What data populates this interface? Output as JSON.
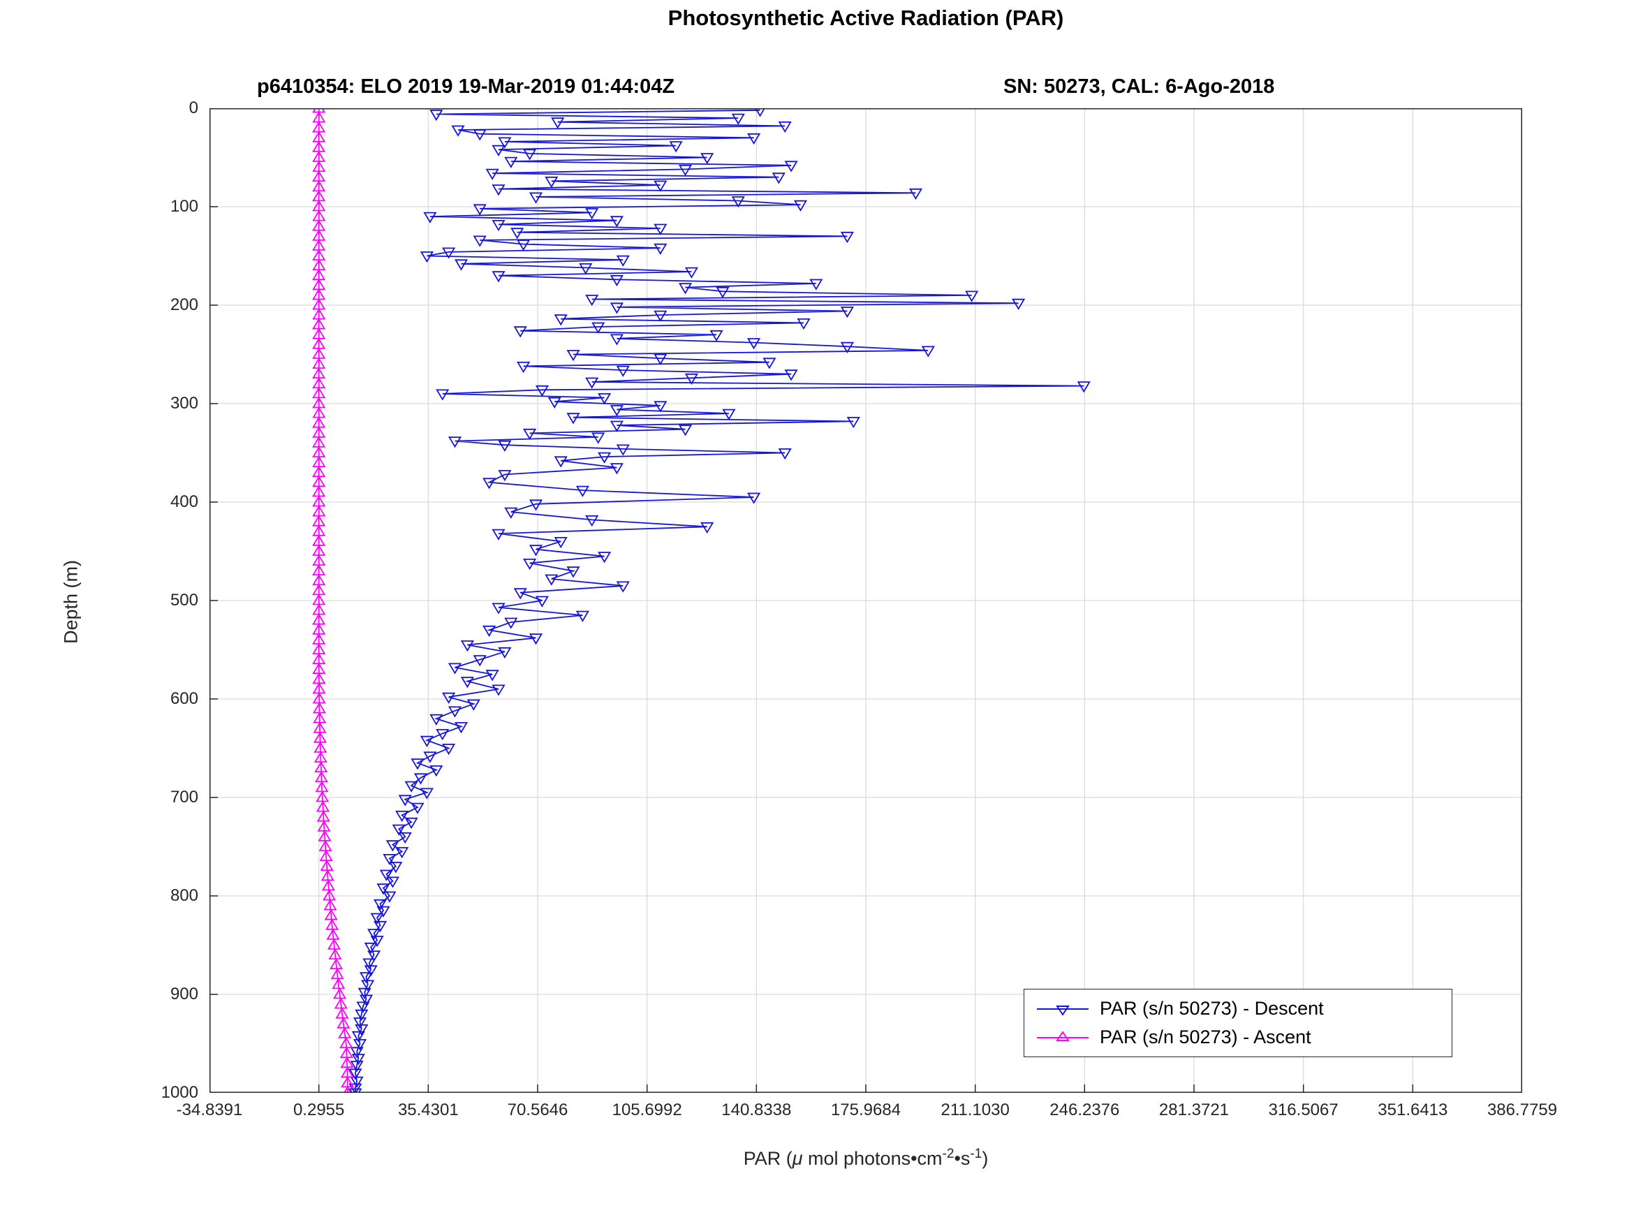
{
  "chart_data": {
    "type": "line",
    "title": "Photosynthetic Active Radiation (PAR)",
    "subtitle_left": "p6410354: ELO 2019 19-Mar-2019 01:44:04Z",
    "subtitle_right": "SN: 50273, CAL: 6-Ago-2018",
    "ylabel": "Depth (m)",
    "xlabel_plain": "PAR (μ mol photons•cm⁻²•s⁻¹)",
    "xlabel_parts": {
      "p1": "PAR (",
      "mu": "μ",
      "p2": " mol photons",
      "dot1": "•",
      "p3": "cm",
      "sup1": "-2",
      "dot2": "•",
      "p4": "s",
      "sup2": "-1",
      "p5": ")"
    },
    "grid": true,
    "y_axis_reversed": true,
    "legend_position": "bottom-right",
    "xlim": [
      -34.8391,
      386.7759
    ],
    "ylim": [
      0,
      1000
    ],
    "x_ticks": [
      -34.8391,
      0.2955,
      35.4301,
      70.5646,
      105.6992,
      140.8338,
      175.9684,
      211.103,
      246.2376,
      281.3721,
      316.5067,
      351.6413,
      386.7759
    ],
    "x_tick_labels": [
      "-34.8391",
      "0.2955",
      "35.4301",
      "70.5646",
      "105.6992",
      "140.8338",
      "175.9684",
      "211.1030",
      "246.2376",
      "281.3721",
      "316.5067",
      "351.6413",
      "386.7759"
    ],
    "y_ticks": [
      0,
      100,
      200,
      300,
      400,
      500,
      600,
      700,
      800,
      900,
      1000
    ],
    "y_tick_labels": [
      "0",
      "100",
      "200",
      "300",
      "400",
      "500",
      "600",
      "700",
      "800",
      "900",
      "1000"
    ],
    "series": [
      {
        "id": "descent",
        "name": "PAR (s/n 50273) - Descent",
        "color": "#1414dc",
        "marker": "triangle-down",
        "points": [
          [
            2,
            142
          ],
          [
            6,
            38
          ],
          [
            10,
            135
          ],
          [
            14,
            77
          ],
          [
            18,
            150
          ],
          [
            22,
            45
          ],
          [
            26,
            52
          ],
          [
            30,
            140
          ],
          [
            34,
            60
          ],
          [
            38,
            115
          ],
          [
            42,
            58
          ],
          [
            46,
            68
          ],
          [
            50,
            125
          ],
          [
            54,
            62
          ],
          [
            58,
            152
          ],
          [
            62,
            118
          ],
          [
            66,
            56
          ],
          [
            70,
            148
          ],
          [
            74,
            75
          ],
          [
            78,
            110
          ],
          [
            82,
            58
          ],
          [
            86,
            192
          ],
          [
            90,
            70
          ],
          [
            94,
            135
          ],
          [
            98,
            155
          ],
          [
            102,
            52
          ],
          [
            106,
            88
          ],
          [
            110,
            36
          ],
          [
            114,
            96
          ],
          [
            118,
            58
          ],
          [
            122,
            110
          ],
          [
            126,
            64
          ],
          [
            130,
            170
          ],
          [
            134,
            52
          ],
          [
            138,
            66
          ],
          [
            142,
            110
          ],
          [
            146,
            42
          ],
          [
            150,
            35
          ],
          [
            154,
            98
          ],
          [
            158,
            46
          ],
          [
            162,
            86
          ],
          [
            166,
            120
          ],
          [
            170,
            58
          ],
          [
            174,
            96
          ],
          [
            178,
            160
          ],
          [
            182,
            118
          ],
          [
            186,
            130
          ],
          [
            190,
            210
          ],
          [
            194,
            88
          ],
          [
            198,
            225
          ],
          [
            202,
            96
          ],
          [
            206,
            170
          ],
          [
            210,
            110
          ],
          [
            214,
            78
          ],
          [
            218,
            156
          ],
          [
            222,
            90
          ],
          [
            226,
            65
          ],
          [
            230,
            128
          ],
          [
            234,
            96
          ],
          [
            238,
            140
          ],
          [
            242,
            170
          ],
          [
            246,
            196
          ],
          [
            250,
            82
          ],
          [
            254,
            110
          ],
          [
            258,
            145
          ],
          [
            262,
            66
          ],
          [
            266,
            98
          ],
          [
            270,
            152
          ],
          [
            274,
            120
          ],
          [
            278,
            88
          ],
          [
            282,
            246
          ],
          [
            286,
            72
          ],
          [
            290,
            40
          ],
          [
            294,
            92
          ],
          [
            298,
            76
          ],
          [
            302,
            110
          ],
          [
            306,
            96
          ],
          [
            310,
            132
          ],
          [
            314,
            82
          ],
          [
            318,
            172
          ],
          [
            322,
            96
          ],
          [
            326,
            118
          ],
          [
            330,
            68
          ],
          [
            334,
            90
          ],
          [
            338,
            44
          ],
          [
            342,
            60
          ],
          [
            346,
            98
          ],
          [
            350,
            150
          ],
          [
            354,
            92
          ],
          [
            358,
            78
          ],
          [
            365,
            96
          ],
          [
            372,
            60
          ],
          [
            380,
            55
          ],
          [
            388,
            85
          ],
          [
            395,
            140
          ],
          [
            402,
            70
          ],
          [
            410,
            62
          ],
          [
            418,
            88
          ],
          [
            425,
            125
          ],
          [
            432,
            58
          ],
          [
            440,
            78
          ],
          [
            448,
            70
          ],
          [
            455,
            92
          ],
          [
            462,
            68
          ],
          [
            470,
            82
          ],
          [
            478,
            75
          ],
          [
            485,
            98
          ],
          [
            492,
            65
          ],
          [
            500,
            72
          ],
          [
            507,
            58
          ],
          [
            515,
            85
          ],
          [
            522,
            62
          ],
          [
            530,
            55
          ],
          [
            538,
            70
          ],
          [
            545,
            48
          ],
          [
            552,
            60
          ],
          [
            560,
            52
          ],
          [
            568,
            44
          ],
          [
            575,
            56
          ],
          [
            582,
            48
          ],
          [
            590,
            58
          ],
          [
            598,
            42
          ],
          [
            605,
            50
          ],
          [
            612,
            44
          ],
          [
            620,
            38
          ],
          [
            628,
            46
          ],
          [
            635,
            40
          ],
          [
            642,
            35
          ],
          [
            650,
            42
          ],
          [
            658,
            36
          ],
          [
            665,
            32
          ],
          [
            672,
            38
          ],
          [
            680,
            33
          ],
          [
            688,
            30
          ],
          [
            695,
            35
          ],
          [
            702,
            28
          ],
          [
            710,
            32
          ],
          [
            718,
            27
          ],
          [
            725,
            30
          ],
          [
            732,
            26
          ],
          [
            740,
            28
          ],
          [
            748,
            24
          ],
          [
            755,
            27
          ],
          [
            762,
            23
          ],
          [
            770,
            25
          ],
          [
            778,
            22
          ],
          [
            785,
            24
          ],
          [
            792,
            21
          ],
          [
            800,
            23
          ],
          [
            808,
            20
          ],
          [
            815,
            21
          ],
          [
            822,
            19
          ],
          [
            830,
            20
          ],
          [
            838,
            18
          ],
          [
            845,
            19
          ],
          [
            852,
            17
          ],
          [
            860,
            18
          ],
          [
            868,
            16.5
          ],
          [
            875,
            17
          ],
          [
            882,
            15.5
          ],
          [
            890,
            16
          ],
          [
            898,
            15
          ],
          [
            905,
            15.5
          ],
          [
            912,
            14.5
          ],
          [
            920,
            14
          ],
          [
            928,
            13.5
          ],
          [
            935,
            14
          ],
          [
            942,
            13
          ],
          [
            950,
            13.5
          ],
          [
            958,
            12.5
          ],
          [
            965,
            13
          ],
          [
            972,
            12.5
          ],
          [
            980,
            12
          ],
          [
            988,
            12.5
          ],
          [
            995,
            12
          ],
          [
            1000,
            12
          ]
        ]
      },
      {
        "id": "ascent",
        "name": "PAR (s/n 50273) - Ascent",
        "color": "#ff00ff",
        "marker": "triangle-up",
        "points": [
          [
            0,
            0.3
          ],
          [
            10,
            0.32
          ],
          [
            20,
            0.28
          ],
          [
            30,
            0.31
          ],
          [
            40,
            0.29
          ],
          [
            50,
            0.3
          ],
          [
            60,
            0.32
          ],
          [
            70,
            0.28
          ],
          [
            80,
            0.31
          ],
          [
            90,
            0.29
          ],
          [
            100,
            0.3
          ],
          [
            110,
            0.32
          ],
          [
            120,
            0.28
          ],
          [
            130,
            0.31
          ],
          [
            140,
            0.29
          ],
          [
            150,
            0.3
          ],
          [
            160,
            0.32
          ],
          [
            170,
            0.28
          ],
          [
            180,
            0.31
          ],
          [
            190,
            0.29
          ],
          [
            200,
            0.3
          ],
          [
            210,
            0.32
          ],
          [
            220,
            0.28
          ],
          [
            230,
            0.31
          ],
          [
            240,
            0.29
          ],
          [
            250,
            0.3
          ],
          [
            260,
            0.32
          ],
          [
            270,
            0.28
          ],
          [
            280,
            0.31
          ],
          [
            290,
            0.29
          ],
          [
            300,
            0.3
          ],
          [
            310,
            0.32
          ],
          [
            320,
            0.28
          ],
          [
            330,
            0.31
          ],
          [
            340,
            0.29
          ],
          [
            350,
            0.3
          ],
          [
            360,
            0.32
          ],
          [
            370,
            0.28
          ],
          [
            380,
            0.31
          ],
          [
            390,
            0.29
          ],
          [
            400,
            0.3
          ],
          [
            410,
            0.32
          ],
          [
            420,
            0.28
          ],
          [
            430,
            0.31
          ],
          [
            440,
            0.29
          ],
          [
            450,
            0.3
          ],
          [
            460,
            0.32
          ],
          [
            470,
            0.28
          ],
          [
            480,
            0.31
          ],
          [
            490,
            0.29
          ],
          [
            500,
            0.3
          ],
          [
            510,
            0.32
          ],
          [
            520,
            0.28
          ],
          [
            530,
            0.31
          ],
          [
            540,
            0.29
          ],
          [
            550,
            0.3
          ],
          [
            560,
            0.31
          ],
          [
            570,
            0.33
          ],
          [
            580,
            0.35
          ],
          [
            590,
            0.38
          ],
          [
            600,
            0.42
          ],
          [
            610,
            0.47
          ],
          [
            620,
            0.53
          ],
          [
            630,
            0.6
          ],
          [
            640,
            0.68
          ],
          [
            650,
            0.77
          ],
          [
            660,
            0.88
          ],
          [
            670,
            1.0
          ],
          [
            680,
            1.13
          ],
          [
            690,
            1.27
          ],
          [
            700,
            1.43
          ],
          [
            710,
            1.6
          ],
          [
            720,
            1.78
          ],
          [
            730,
            1.97
          ],
          [
            740,
            2.18
          ],
          [
            750,
            2.4
          ],
          [
            760,
            2.63
          ],
          [
            770,
            2.87
          ],
          [
            780,
            3.12
          ],
          [
            790,
            3.38
          ],
          [
            800,
            3.65
          ],
          [
            810,
            3.94
          ],
          [
            820,
            4.23
          ],
          [
            830,
            4.54
          ],
          [
            840,
            4.86
          ],
          [
            850,
            5.19
          ],
          [
            860,
            5.53
          ],
          [
            870,
            5.88
          ],
          [
            880,
            6.24
          ],
          [
            890,
            6.61
          ],
          [
            900,
            6.99
          ],
          [
            910,
            7.38
          ],
          [
            920,
            7.78
          ],
          [
            930,
            8.19
          ],
          [
            940,
            8.61
          ],
          [
            950,
            9.04
          ],
          [
            960,
            9.2
          ],
          [
            970,
            9.35
          ],
          [
            980,
            9.45
          ],
          [
            990,
            9.5
          ],
          [
            1000,
            9.5
          ]
        ]
      }
    ]
  }
}
